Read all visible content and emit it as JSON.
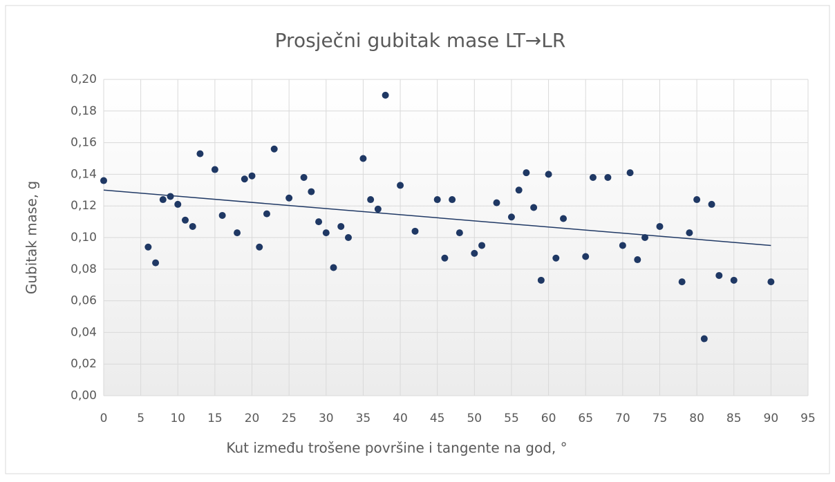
{
  "chart_data": {
    "type": "scatter",
    "title": "Prosječni gubitak mase LT→LR",
    "x_label": "Kut između trošene površine i tangente na god, °",
    "y_label": "Gubitak mase, g",
    "x": [
      0,
      6,
      7,
      8,
      9,
      10,
      11,
      12,
      13,
      15,
      16,
      18,
      19,
      20,
      21,
      22,
      23,
      25,
      27,
      28,
      29,
      30,
      31,
      32,
      33,
      35,
      36,
      37,
      38,
      40,
      42,
      45,
      46,
      47,
      48,
      50,
      51,
      53,
      55,
      56,
      57,
      58,
      59,
      60,
      61,
      62,
      65,
      66,
      68,
      70,
      71,
      72,
      73,
      75,
      78,
      79,
      80,
      81,
      82,
      83,
      85,
      90
    ],
    "values": [
      0.136,
      0.094,
      0.084,
      0.124,
      0.126,
      0.121,
      0.111,
      0.107,
      0.153,
      0.143,
      0.114,
      0.103,
      0.137,
      0.139,
      0.094,
      0.115,
      0.156,
      0.125,
      0.138,
      0.129,
      0.11,
      0.103,
      0.081,
      0.107,
      0.1,
      0.15,
      0.124,
      0.118,
      0.19,
      0.133,
      0.104,
      0.124,
      0.087,
      0.124,
      0.103,
      0.09,
      0.095,
      0.122,
      0.113,
      0.13,
      0.141,
      0.119,
      0.073,
      0.14,
      0.087,
      0.112,
      0.088,
      0.138,
      0.138,
      0.095,
      0.141,
      0.086,
      0.1,
      0.107,
      0.072,
      0.103,
      0.124,
      0.036,
      0.121,
      0.076,
      0.073,
      0.072
    ],
    "color": "#1f3864",
    "trendline": {
      "x": [
        0,
        90
      ],
      "values": [
        0.13,
        0.095
      ],
      "color": "#1f3864"
    },
    "xlim": [
      0,
      95
    ],
    "xticks": [
      0,
      5,
      10,
      15,
      20,
      25,
      30,
      35,
      40,
      45,
      50,
      55,
      60,
      65,
      70,
      75,
      80,
      85,
      90,
      95
    ],
    "ylim": [
      0,
      0.2
    ],
    "yticks": [
      {
        "value": 0,
        "label": "0,00"
      },
      {
        "value": 0.02,
        "label": "0,02"
      },
      {
        "value": 0.04,
        "label": "0,04"
      },
      {
        "value": 0.06,
        "label": "0,06"
      },
      {
        "value": 0.08,
        "label": "0,08"
      },
      {
        "value": 0.1,
        "label": "0,10"
      },
      {
        "value": 0.12,
        "label": "0,12"
      },
      {
        "value": 0.14,
        "label": "0,14"
      },
      {
        "value": 0.16,
        "label": "0,16"
      },
      {
        "value": 0.18,
        "label": "0,18"
      },
      {
        "value": 0.2,
        "label": "0,20"
      }
    ],
    "grid": true
  }
}
